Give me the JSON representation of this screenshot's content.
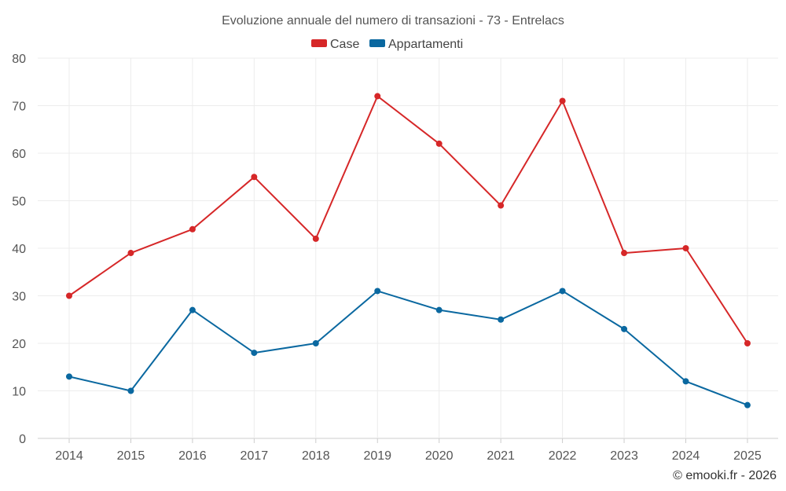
{
  "chart_data": {
    "type": "line",
    "title": "Evoluzione annuale del numero di transazioni - 73 - Entrelacs",
    "categories": [
      "2014",
      "2015",
      "2016",
      "2017",
      "2018",
      "2019",
      "2020",
      "2021",
      "2022",
      "2023",
      "2024",
      "2025"
    ],
    "series": [
      {
        "name": "Case",
        "color": "#d62728",
        "values": [
          30,
          39,
          44,
          55,
          42,
          72,
          62,
          49,
          71,
          39,
          40,
          20
        ]
      },
      {
        "name": "Appartamenti",
        "color": "#0a68a0",
        "values": [
          13,
          10,
          27,
          18,
          20,
          31,
          27,
          25,
          31,
          23,
          12,
          7
        ]
      }
    ],
    "ylim": [
      0,
      80
    ],
    "yticks": [
      0,
      10,
      20,
      30,
      40,
      50,
      60,
      70,
      80
    ],
    "xlabel": "",
    "ylabel": "",
    "grid": true,
    "legend": "top-center"
  },
  "credit": "© emooki.fr - 2026"
}
